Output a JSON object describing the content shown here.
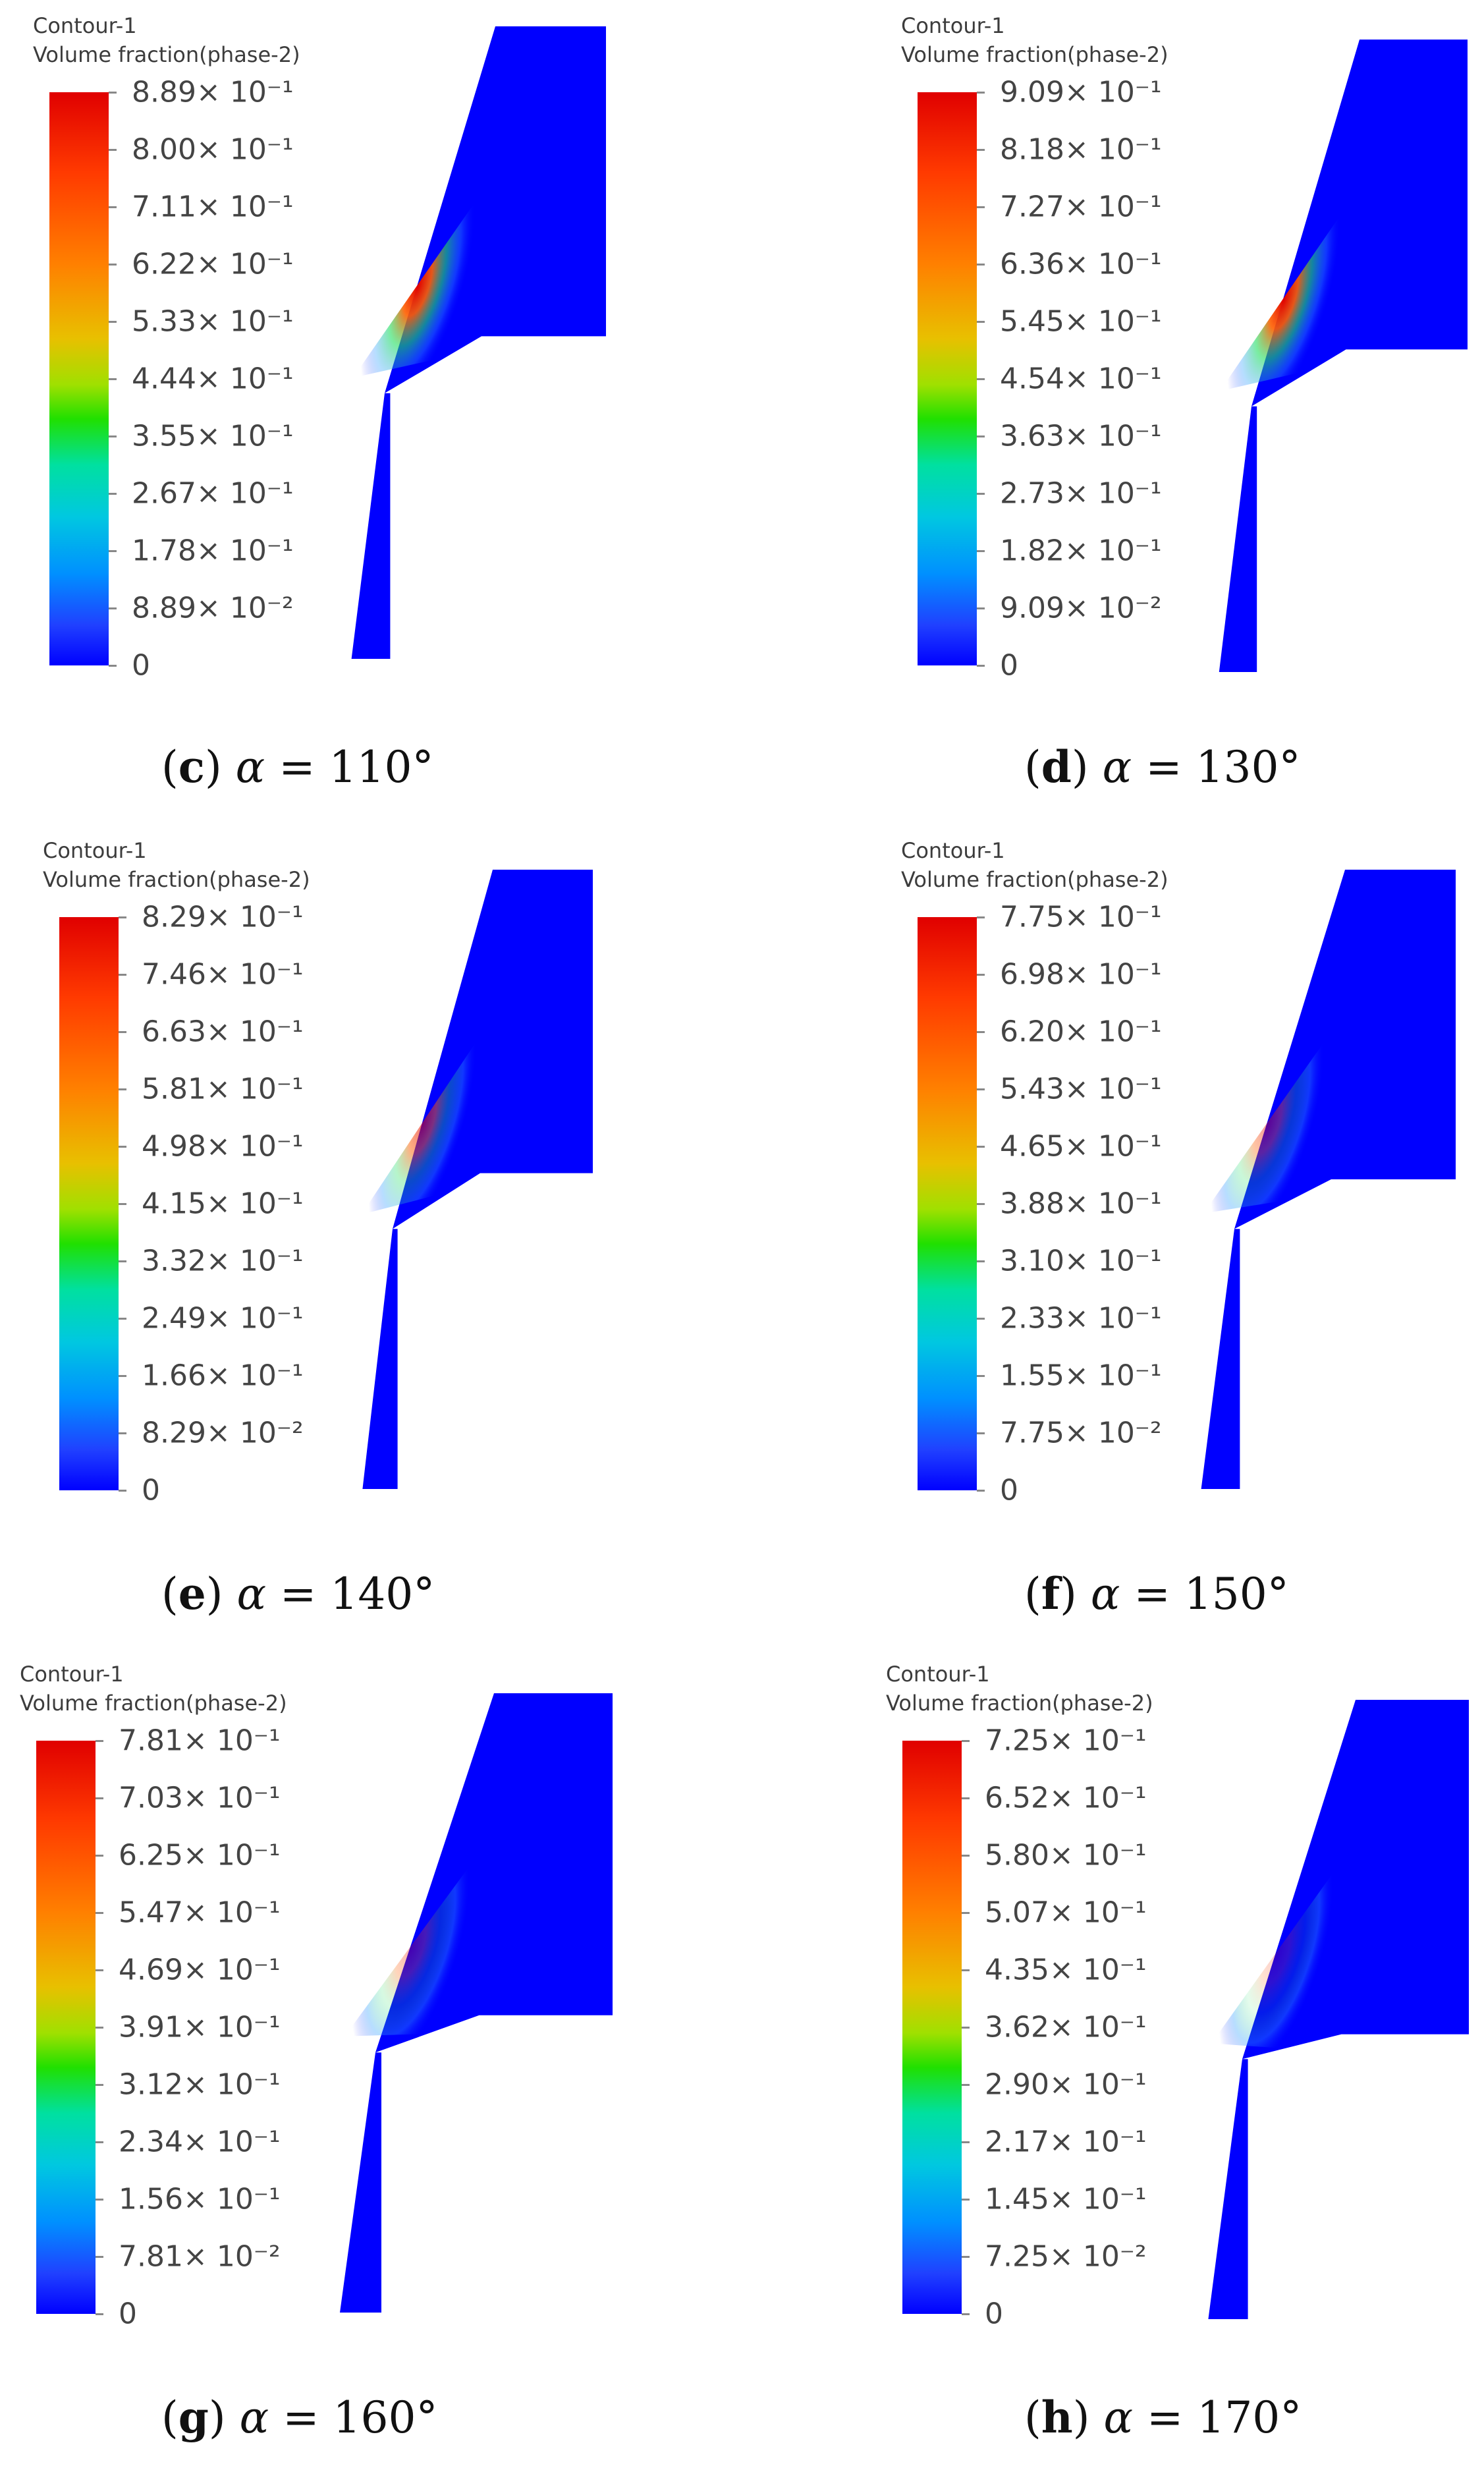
{
  "panels": [
    {
      "letter": "c",
      "angle": "110°",
      "max": "8.89× 10⁻¹",
      "labels": [
        "8.89× 10⁻¹",
        "8.00× 10⁻¹",
        "7.11× 10⁻¹",
        "6.22× 10⁻¹",
        "5.33× 10⁻¹",
        "4.44× 10⁻¹",
        "3.55× 10⁻¹",
        "2.67× 10⁻¹",
        "1.78× 10⁻¹",
        "8.89× 10⁻²",
        "0"
      ]
    },
    {
      "letter": "d",
      "angle": "130°",
      "max": "9.09× 10⁻¹",
      "labels": [
        "9.09× 10⁻¹",
        "8.18× 10⁻¹",
        "7.27× 10⁻¹",
        "6.36× 10⁻¹",
        "5.45× 10⁻¹",
        "4.54× 10⁻¹",
        "3.63× 10⁻¹",
        "2.73× 10⁻¹",
        "1.82× 10⁻¹",
        "9.09× 10⁻²",
        "0"
      ]
    },
    {
      "letter": "e",
      "angle": "140°",
      "max": "8.29× 10⁻¹",
      "labels": [
        "8.29× 10⁻¹",
        "7.46× 10⁻¹",
        "6.63× 10⁻¹",
        "5.81× 10⁻¹",
        "4.98× 10⁻¹",
        "4.15× 10⁻¹",
        "3.32× 10⁻¹",
        "2.49× 10⁻¹",
        "1.66× 10⁻¹",
        "8.29× 10⁻²",
        "0"
      ]
    },
    {
      "letter": "f",
      "angle": "150°",
      "max": "7.75× 10⁻¹",
      "labels": [
        "7.75× 10⁻¹",
        "6.98× 10⁻¹",
        "6.20× 10⁻¹",
        "5.43× 10⁻¹",
        "4.65× 10⁻¹",
        "3.88× 10⁻¹",
        "3.10× 10⁻¹",
        "2.33× 10⁻¹",
        "1.55× 10⁻¹",
        "7.75× 10⁻²",
        "0"
      ]
    },
    {
      "letter": "g",
      "angle": "160°",
      "max": "7.81× 10⁻¹",
      "labels": [
        "7.81× 10⁻¹",
        "7.03× 10⁻¹",
        "6.25× 10⁻¹",
        "5.47× 10⁻¹",
        "4.69× 10⁻¹",
        "3.91× 10⁻¹",
        "3.12× 10⁻¹",
        "2.34× 10⁻¹",
        "1.56× 10⁻¹",
        "7.81× 10⁻²",
        "0"
      ]
    },
    {
      "letter": "h",
      "angle": "170°",
      "max": "7.25× 10⁻¹",
      "labels": [
        "7.25× 10⁻¹",
        "6.52× 10⁻¹",
        "5.80× 10⁻¹",
        "5.07× 10⁻¹",
        "4.35× 10⁻¹",
        "3.62× 10⁻¹",
        "2.90× 10⁻¹",
        "2.17× 10⁻¹",
        "1.45× 10⁻¹",
        "7.25× 10⁻²",
        "0"
      ]
    }
  ],
  "contour_title": "Contour-1",
  "contour_variable": "Volume fraction(phase-2)",
  "alpha_symbol": "α",
  "colors": {
    "field_blue": "#0000ff",
    "hot_red": "#e00000",
    "label_gray": "#444444"
  }
}
